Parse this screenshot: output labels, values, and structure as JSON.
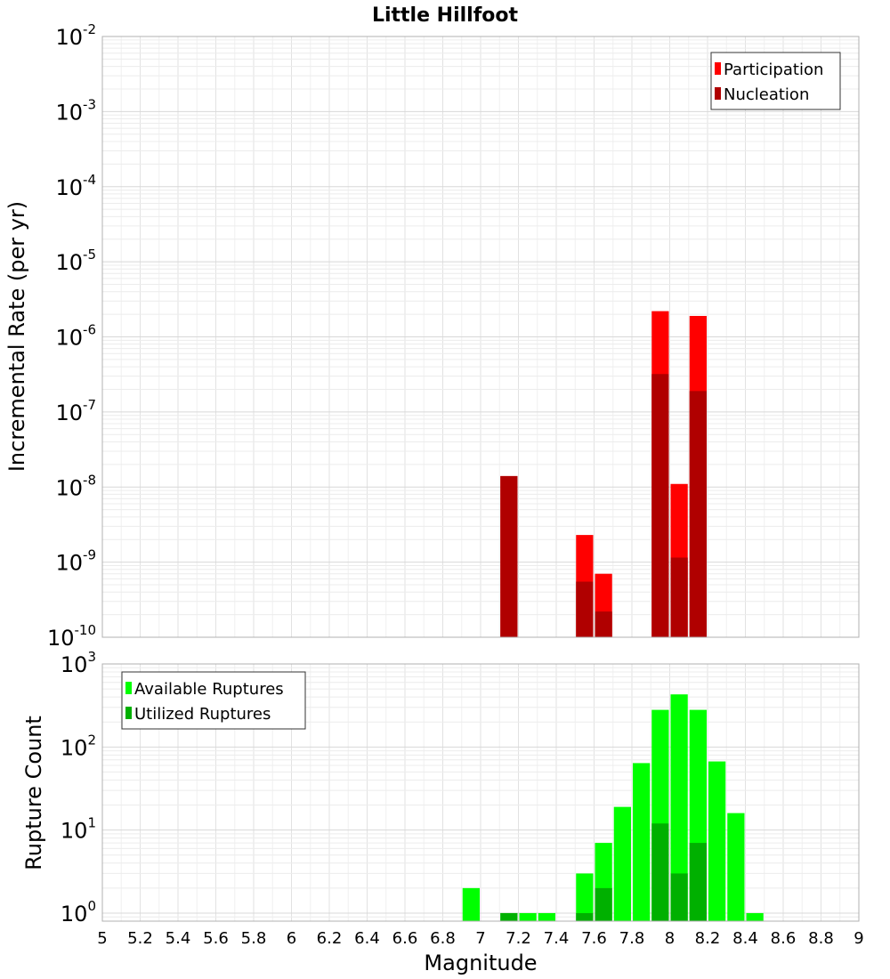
{
  "chart_data": [
    {
      "type": "bar",
      "title": "Little Hillfoot",
      "xlabel": "",
      "ylabel": "Incremental Rate (per yr)",
      "xlim": [
        5,
        9
      ],
      "ylim": [
        1e-10,
        0.01
      ],
      "yscale": "log",
      "y_ticks": [
        {
          "base": "10",
          "exp": "-10"
        },
        {
          "base": "10",
          "exp": "-9"
        },
        {
          "base": "10",
          "exp": "-8"
        },
        {
          "base": "10",
          "exp": "-7"
        },
        {
          "base": "10",
          "exp": "-6"
        },
        {
          "base": "10",
          "exp": "-5"
        },
        {
          "base": "10",
          "exp": "-4"
        },
        {
          "base": "10",
          "exp": "-3"
        },
        {
          "base": "10",
          "exp": "-2"
        }
      ],
      "grid": true,
      "legend_position": "top-right",
      "series": [
        {
          "name": "Participation",
          "color": "#ff0000",
          "x": [
            7.15,
            7.55,
            7.65,
            7.95,
            8.05,
            8.15
          ],
          "values": [
            1.4e-08,
            2.3e-09,
            7e-10,
            2.2e-06,
            1.1e-08,
            1.9e-06
          ]
        },
        {
          "name": "Nucleation",
          "color": "#b00000",
          "x": [
            7.15,
            7.55,
            7.65,
            7.95,
            8.05,
            8.15
          ],
          "values": [
            1.4e-08,
            5.5e-10,
            2.2e-10,
            3.2e-07,
            1.15e-09,
            1.9e-07
          ]
        }
      ]
    },
    {
      "type": "bar",
      "title": "",
      "xlabel": "Magnitude",
      "ylabel": "Rupture Count",
      "xlim": [
        5,
        9
      ],
      "x_ticks": [
        "5",
        "5.2",
        "5.4",
        "5.6",
        "5.8",
        "6",
        "6.2",
        "6.4",
        "6.6",
        "6.8",
        "7",
        "7.2",
        "7.4",
        "7.6",
        "7.8",
        "8",
        "8.2",
        "8.4",
        "8.6",
        "8.8",
        "9"
      ],
      "ylim": [
        0.8,
        1000
      ],
      "yscale": "log",
      "y_ticks": [
        {
          "base": "10",
          "exp": "0"
        },
        {
          "base": "10",
          "exp": "1"
        },
        {
          "base": "10",
          "exp": "2"
        },
        {
          "base": "10",
          "exp": "3"
        }
      ],
      "grid": true,
      "legend_position": "top-left",
      "series": [
        {
          "name": "Available Ruptures",
          "color": "#00ff00",
          "x": [
            6.95,
            7.15,
            7.25,
            7.35,
            7.55,
            7.65,
            7.75,
            7.85,
            7.95,
            8.05,
            8.15,
            8.25,
            8.35,
            8.45
          ],
          "values": [
            2,
            1,
            1,
            1,
            3,
            7,
            19,
            64,
            280,
            430,
            280,
            67,
            16,
            1
          ]
        },
        {
          "name": "Utilized Ruptures",
          "color": "#00b000",
          "x": [
            7.15,
            7.55,
            7.65,
            7.95,
            8.05,
            8.15
          ],
          "values": [
            1,
            1,
            2,
            12,
            3,
            7
          ]
        }
      ]
    }
  ]
}
